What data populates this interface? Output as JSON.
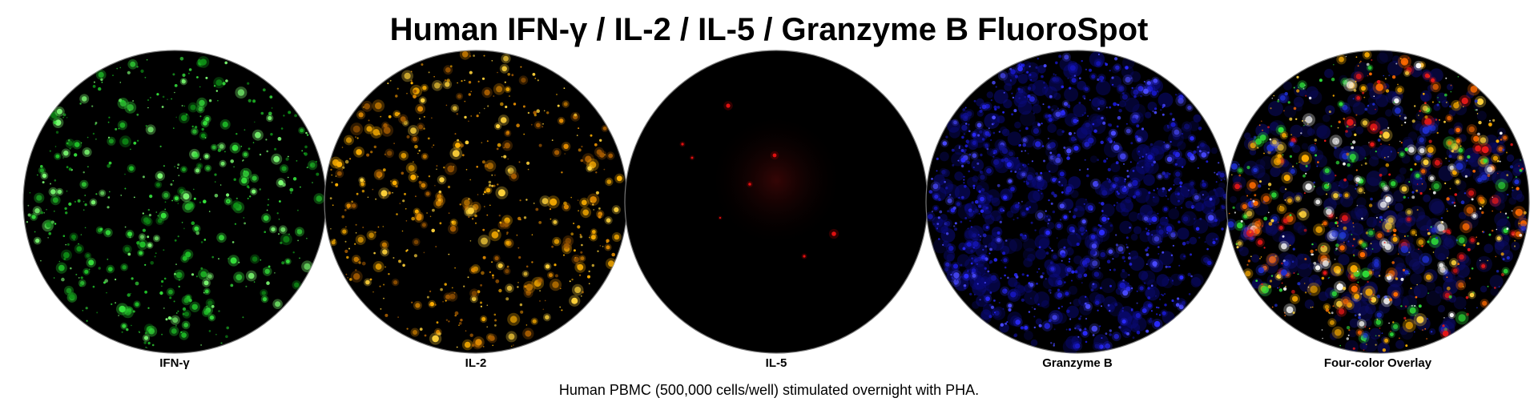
{
  "title": "Human IFN-γ / IL-2 / IL-5 / Granzyme B FluoroSpot",
  "caption": "Human PBMC (500,000 cells/well) stimulated overnight with PHA.",
  "wells": [
    {
      "label": "IFN-γ",
      "palette": [
        "#0e8f16",
        "#1fbf28",
        "#36e23c",
        "#7dff74"
      ],
      "spot_density": "high"
    },
    {
      "label": "IL-2",
      "palette": [
        "#a35a00",
        "#e08a00",
        "#ffb000",
        "#ffd23a"
      ],
      "spot_density": "high"
    },
    {
      "label": "IL-5",
      "palette": [
        "#6a0000",
        "#b00000",
        "#e01010"
      ],
      "spot_density": "very low"
    },
    {
      "label": "Granzyme B",
      "palette": [
        "#10108a",
        "#1818c8",
        "#2a2aff",
        "#4a4aff"
      ],
      "spot_density": "high"
    },
    {
      "label": "Four-color Overlay",
      "palette": [
        "#1f2fd0",
        "#ffae00",
        "#ffd23a",
        "#2fe03a",
        "#ff6a00",
        "#ffffff",
        "#e81818"
      ],
      "spot_density": "high"
    }
  ],
  "background_color": "#000000"
}
